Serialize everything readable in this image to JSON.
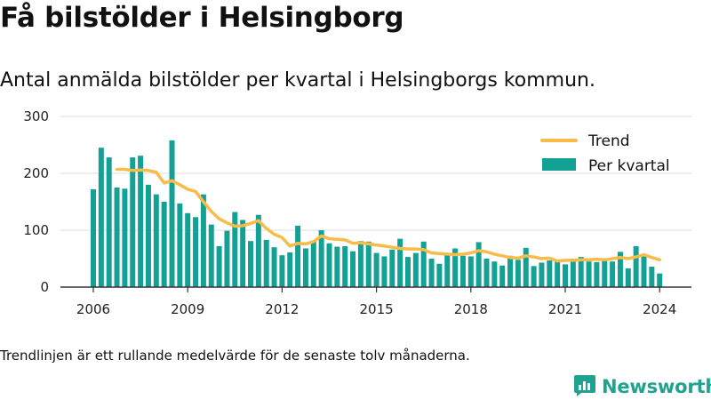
{
  "header": {
    "title": "Få bilstölder i Helsingborg",
    "subtitle": "Antal anmälda bilstölder per kvartal i Helsingborgs kommun."
  },
  "footer": {
    "note": "Trendlinjen är ett rullande medelvärde för de senaste tolv månaderna.",
    "brand": "Newsworthy"
  },
  "colors": {
    "bar": "#14a195",
    "trend": "#f9bb4a",
    "brand": "#1fa38e",
    "grid": "#dddddd",
    "axis": "#333333"
  },
  "chart_data": {
    "type": "bar",
    "title": "",
    "xlabel": "",
    "ylabel": "",
    "ylim": [
      0,
      300
    ],
    "yticks": [
      0,
      100,
      200,
      300
    ],
    "xticks": [
      "2006",
      "2009",
      "2012",
      "2015",
      "2018",
      "2021",
      "2024"
    ],
    "grid": true,
    "legend_position": "top-right",
    "x_start": "2006 Q1",
    "series": [
      {
        "name": "Per kvartal",
        "type": "bar",
        "values": [
          172,
          245,
          228,
          175,
          173,
          228,
          231,
          180,
          163,
          150,
          258,
          147,
          130,
          123,
          163,
          110,
          72,
          99,
          132,
          118,
          81,
          127,
          83,
          70,
          56,
          61,
          108,
          68,
          82,
          100,
          77,
          71,
          72,
          63,
          81,
          80,
          60,
          54,
          66,
          85,
          53,
          60,
          80,
          50,
          41,
          60,
          68,
          55,
          54,
          79,
          50,
          45,
          38,
          55,
          48,
          69,
          37,
          43,
          47,
          45,
          40,
          50,
          53,
          45,
          44,
          49,
          45,
          62,
          33,
          72,
          56,
          36,
          24
        ]
      },
      {
        "name": "Trend",
        "type": "line",
        "values": [
          null,
          null,
          null,
          207,
          207,
          205,
          206,
          205,
          202,
          183,
          187,
          180,
          172,
          168,
          150,
          133,
          120,
          113,
          107,
          108,
          112,
          117,
          103,
          93,
          87,
          72,
          77,
          76,
          80,
          90,
          85,
          84,
          83,
          77,
          78,
          76,
          74,
          72,
          70,
          68,
          67,
          67,
          66,
          60,
          59,
          58,
          57,
          58,
          60,
          64,
          62,
          58,
          55,
          52,
          51,
          55,
          53,
          50,
          51,
          46,
          47,
          47,
          48,
          48,
          49,
          48,
          50,
          52,
          50,
          53,
          57,
          52,
          48
        ]
      }
    ]
  }
}
